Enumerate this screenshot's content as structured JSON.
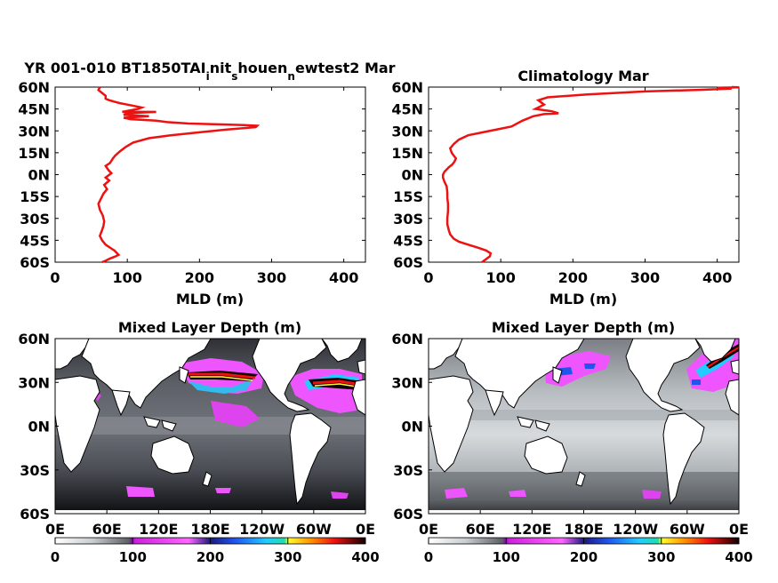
{
  "chart_data": [
    {
      "type": "line",
      "title_parts": [
        "YR 001-010 BT1850TAI",
        "i",
        "nit",
        "s",
        "houen",
        "n",
        "ewtest2 Mar"
      ],
      "xlabel": "MLD (m)",
      "ylabel": "",
      "xlim": [
        0,
        430
      ],
      "xticks": [
        "0",
        "100",
        "200",
        "300",
        "400"
      ],
      "ylim": [
        -60,
        60
      ],
      "yticks": [
        "60N",
        "45N",
        "30N",
        "15N",
        "0N",
        "15S",
        "30S",
        "45S",
        "60S"
      ],
      "line_color": "#ee1111",
      "series": [
        {
          "x": [
            62,
            60,
            65,
            70,
            70,
            75,
            82,
            90,
            100,
            110,
            120,
            115,
            103,
            93,
            140,
            100,
            95,
            130,
            95,
            105,
            140,
            155,
            185,
            225,
            262,
            280,
            278,
            240,
            200,
            160,
            130,
            108,
            98,
            90,
            83,
            80,
            76,
            70,
            74,
            78,
            70,
            75,
            68,
            72,
            67,
            64,
            60,
            62,
            66,
            68,
            67,
            65,
            62,
            65,
            70,
            76,
            82,
            86,
            88,
            84,
            76,
            70,
            65
          ],
          "y": [
            60,
            58,
            56,
            54,
            52,
            51,
            50,
            49,
            48,
            47,
            46,
            45,
            44,
            43,
            43,
            42,
            41,
            40,
            39,
            38,
            37,
            36,
            35,
            34.5,
            34,
            33.5,
            32.5,
            31,
            29,
            27,
            25,
            22,
            19,
            16,
            13,
            11,
            8,
            6,
            3,
            1,
            -2,
            -4,
            -7,
            -10,
            -13,
            -16,
            -20,
            -24,
            -28,
            -32,
            -35,
            -38,
            -42,
            -45,
            -48,
            -50,
            -52,
            -54,
            -55,
            -56,
            -57.5,
            -59,
            -60
          ]
        }
      ]
    },
    {
      "type": "line",
      "title": "Climatology Mar",
      "xlabel": "MLD (m)",
      "ylabel": "",
      "xlim": [
        0,
        430
      ],
      "xticks": [
        "0",
        "100",
        "200",
        "300",
        "400"
      ],
      "ylim": [
        -60,
        60
      ],
      "yticks": [
        "60N",
        "45N",
        "30N",
        "15N",
        "0N",
        "15S",
        "30S",
        "45S",
        "60S"
      ],
      "line_color": "#ee1111",
      "series": [
        {
          "x": [
            420,
            430,
            400,
            420,
            380,
            300,
            220,
            165,
            152,
            160,
            152,
            148,
            170,
            180,
            160,
            145,
            130,
            115,
            95,
            75,
            55,
            42,
            35,
            30,
            32,
            35,
            38,
            36,
            33,
            28,
            22,
            20,
            20,
            22,
            25,
            26,
            26,
            27,
            27,
            26,
            26,
            28,
            30,
            35,
            42,
            55,
            68,
            80,
            86,
            85,
            74
          ],
          "y": [
            60,
            59.8,
            59.5,
            59,
            58.2,
            57,
            55,
            53,
            51,
            48,
            46,
            45,
            43.5,
            42,
            41.5,
            40,
            37,
            33,
            31,
            29,
            27,
            24,
            21,
            18,
            15,
            13,
            11,
            9,
            7,
            5,
            2,
            0,
            -2,
            -5,
            -8,
            -12,
            -16,
            -20,
            -25,
            -30,
            -34,
            -38,
            -41,
            -44,
            -46,
            -48,
            -50,
            -52,
            -54,
            -56,
            -60
          ]
        }
      ]
    },
    {
      "type": "heatmap",
      "title": "Mixed Layer Depth (m)",
      "xticks": [
        "0E",
        "60E",
        "120E",
        "180E",
        "120W",
        "60W",
        "0E"
      ],
      "yticks": [
        "60N",
        "30N",
        "0N",
        "30S",
        "60S"
      ],
      "colorbar": {
        "min": 0,
        "max": 400,
        "ticks": [
          "0",
          "100",
          "200",
          "300",
          "400"
        ]
      }
    },
    {
      "type": "heatmap",
      "title": "Mixed Layer Depth (m)",
      "xticks": [
        "0E",
        "60E",
        "120E",
        "180E",
        "120W",
        "60W",
        "0E"
      ],
      "yticks": [
        "60N",
        "30N",
        "0N",
        "30S",
        "60S"
      ],
      "colorbar": {
        "min": 0,
        "max": 400,
        "ticks": [
          "0",
          "100",
          "200",
          "300",
          "400"
        ]
      }
    }
  ]
}
